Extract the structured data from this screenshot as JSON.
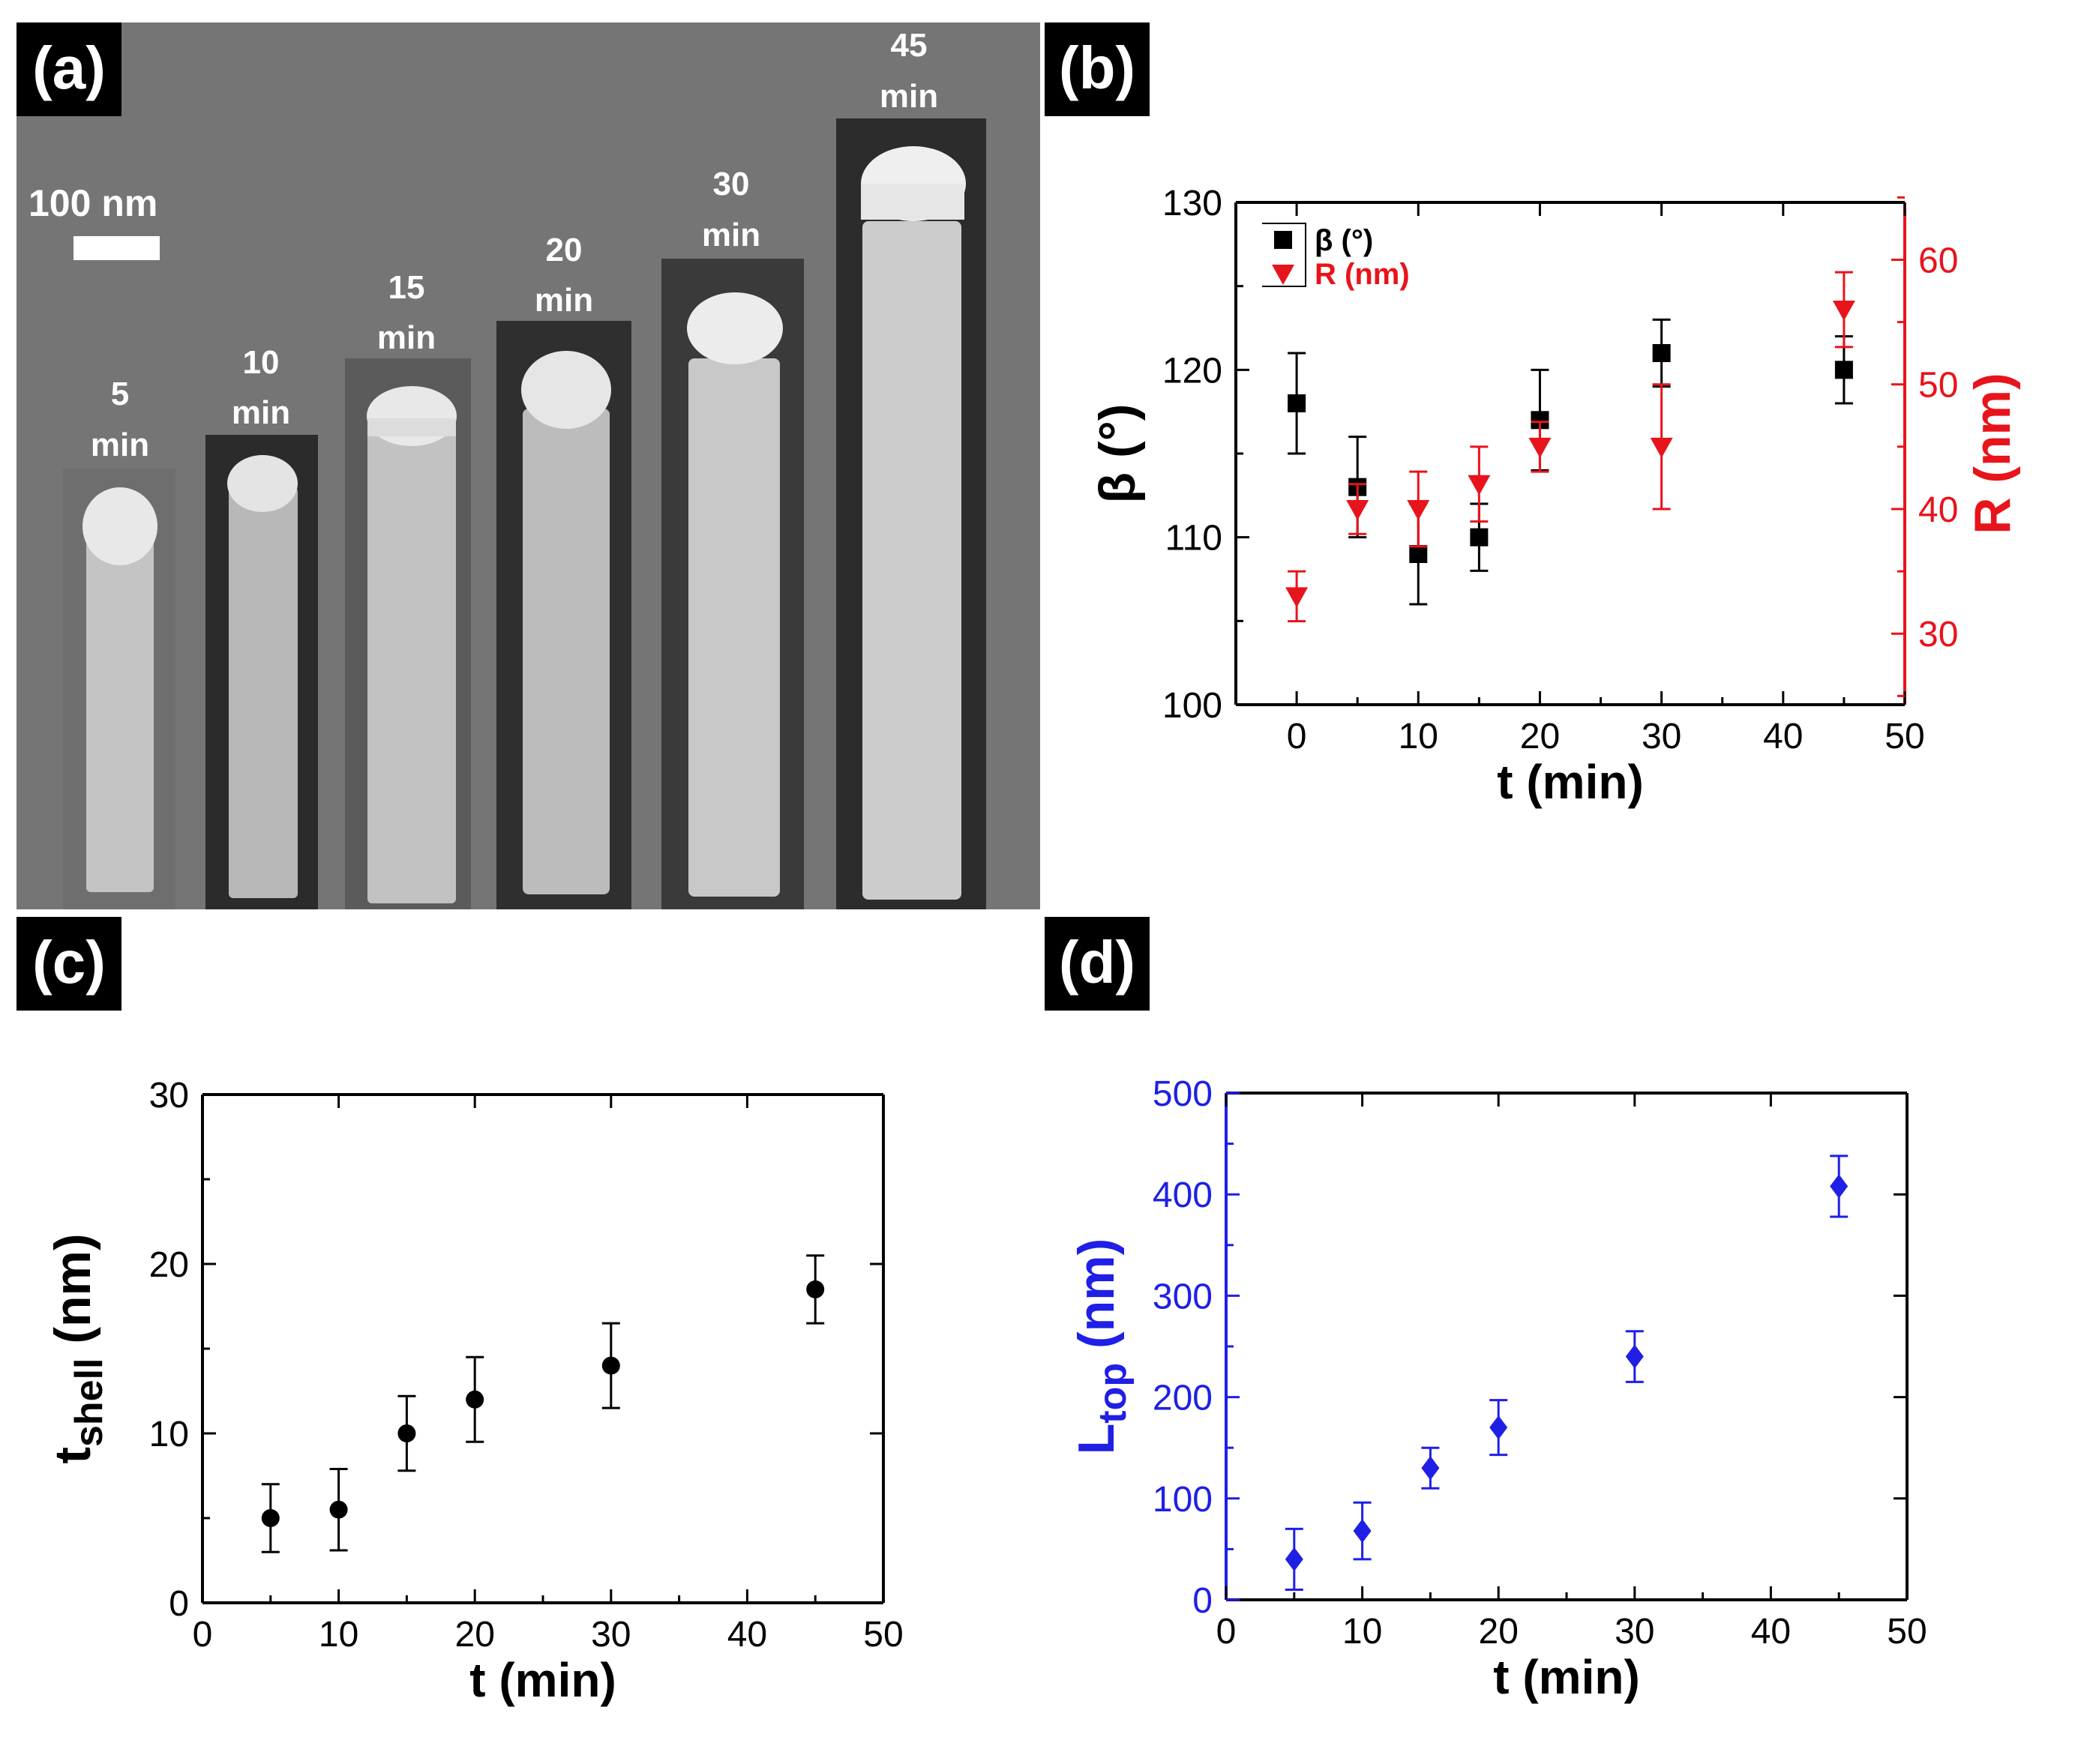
{
  "panels": {
    "a": {
      "label": "(a)"
    },
    "b": {
      "label": "(b)"
    },
    "c": {
      "label": "(c)"
    },
    "d": {
      "label": "(d)"
    }
  },
  "sem": {
    "scale_bar_label": "100 nm",
    "samples": [
      {
        "time": "5",
        "unit": "min"
      },
      {
        "time": "10",
        "unit": "min"
      },
      {
        "time": "15",
        "unit": "min"
      },
      {
        "time": "20",
        "unit": "min"
      },
      {
        "time": "30",
        "unit": "min"
      },
      {
        "time": "45",
        "unit": "min"
      }
    ],
    "colors": {
      "background": "#757575",
      "wire": "#c9c9c9",
      "cap": "#ececec",
      "tile": "#2a2a2a"
    }
  },
  "chart_data": [
    {
      "id": "b",
      "type": "scatter",
      "xlabel": "t (min)",
      "xlim": [
        -5,
        50
      ],
      "xticks": [
        0,
        10,
        20,
        30,
        40,
        50
      ],
      "left_axis": {
        "label": "β (°)",
        "lim": [
          100,
          130
        ],
        "ticks": [
          100,
          110,
          120,
          130
        ],
        "color": "#000000"
      },
      "right_axis": {
        "label": "R (nm)",
        "lim": [
          24.3,
          64.6
        ],
        "ticks": [
          30,
          40,
          50,
          60
        ],
        "color": "#e8141b"
      },
      "legend": {
        "position": "top-left"
      },
      "series": [
        {
          "name": "β (°)",
          "axis": "left",
          "marker": "square",
          "color": "#000000",
          "x": [
            0,
            5,
            10,
            15,
            20,
            30,
            45
          ],
          "y": [
            118,
            113,
            109,
            110,
            117,
            121,
            120
          ],
          "err": [
            3,
            3,
            3,
            2,
            3,
            2,
            2
          ]
        },
        {
          "name": "R (nm)",
          "axis": "right",
          "marker": "triangle-down",
          "color": "#e8141b",
          "x": [
            0,
            5,
            10,
            15,
            20,
            30,
            45
          ],
          "y": [
            33,
            40,
            40,
            42,
            45,
            45,
            56
          ],
          "err": [
            2,
            2,
            3,
            3,
            2,
            5,
            3
          ]
        }
      ]
    },
    {
      "id": "c",
      "type": "scatter",
      "xlabel": "t (min)",
      "ylabel": "t",
      "ylabel_sub": "shell",
      "ylabel_unit": " (nm)",
      "xlim": [
        0,
        50
      ],
      "ylim": [
        0,
        30
      ],
      "xticks": [
        0,
        10,
        20,
        30,
        40,
        50
      ],
      "yticks": [
        0,
        10,
        20,
        30
      ],
      "series": [
        {
          "name": "t_shell",
          "marker": "circle",
          "color": "#000000",
          "x": [
            5,
            10,
            15,
            20,
            30,
            45
          ],
          "y": [
            5.0,
            5.5,
            10.0,
            12.0,
            14.0,
            18.5
          ],
          "err": [
            2.0,
            2.4,
            2.2,
            2.5,
            2.5,
            2.0
          ]
        }
      ]
    },
    {
      "id": "d",
      "type": "scatter",
      "xlabel": "t (min)",
      "ylabel": "L",
      "ylabel_sub": "top",
      "ylabel_unit": " (nm)",
      "axis_color": "#1f1fe6",
      "xlim": [
        0,
        50
      ],
      "ylim": [
        0,
        500
      ],
      "xticks": [
        0,
        10,
        20,
        30,
        40,
        50
      ],
      "yticks": [
        0,
        100,
        200,
        300,
        400,
        500
      ],
      "series": [
        {
          "name": "L_top",
          "marker": "diamond",
          "color": "#1f1fe6",
          "x": [
            5,
            10,
            15,
            20,
            30,
            45
          ],
          "y": [
            40,
            68,
            130,
            170,
            240,
            408
          ],
          "err": [
            30,
            28,
            20,
            27,
            25,
            30
          ]
        }
      ]
    }
  ]
}
